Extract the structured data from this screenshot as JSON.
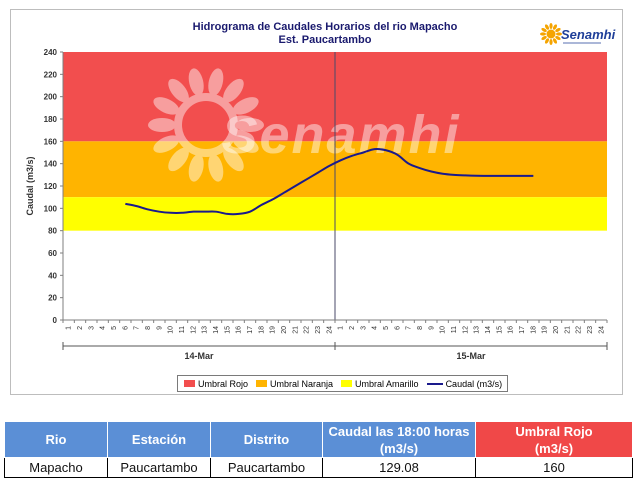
{
  "chart_data": {
    "type": "line",
    "title": "Hidrograma de Caudales Horarios del rio Mapacho",
    "subtitle": "Est. Paucartambo",
    "ylabel": "Caudal  (m3/s)",
    "xlabel": "",
    "ylim": [
      0,
      240
    ],
    "yticks": [
      0,
      20,
      40,
      60,
      80,
      100,
      120,
      140,
      160,
      180,
      200,
      220,
      240
    ],
    "x_tick_labels": [
      "1",
      "2",
      "3",
      "4",
      "5",
      "6",
      "7",
      "8",
      "9",
      "10",
      "11",
      "12",
      "13",
      "14",
      "15",
      "16",
      "17",
      "18",
      "19",
      "20",
      "21",
      "22",
      "23",
      "24",
      "1",
      "2",
      "3",
      "4",
      "5",
      "6",
      "7",
      "8",
      "9",
      "10",
      "11",
      "12",
      "13",
      "14",
      "15",
      "16",
      "17",
      "18",
      "19",
      "20",
      "21",
      "22",
      "23",
      "24"
    ],
    "day_groups": [
      "14-Mar",
      "15-Mar"
    ],
    "threshold_bands": [
      {
        "name": "Umbral Rojo",
        "from": 160,
        "to": 240,
        "color": "#f24e4e"
      },
      {
        "name": "Umbral Naranja",
        "from": 110,
        "to": 160,
        "color": "#ffb400"
      },
      {
        "name": "Umbral Amarillo",
        "from": 80,
        "to": 110,
        "color": "#ffff00"
      }
    ],
    "series": [
      {
        "name": "Caudal (m3/s)",
        "color": "#1a1a8c",
        "x": [
          6,
          7,
          8,
          9,
          10,
          11,
          12,
          13,
          14,
          15,
          16,
          17,
          18,
          19,
          20,
          21,
          22,
          23,
          24,
          25,
          26,
          27,
          28,
          29,
          30,
          31,
          32,
          33,
          34,
          35,
          36,
          37,
          38,
          39,
          40,
          41,
          42
        ],
        "values": [
          104,
          102,
          99,
          97,
          96,
          96,
          97,
          97,
          97,
          95,
          95,
          97,
          103,
          108,
          114,
          120,
          126,
          132,
          138,
          143,
          147,
          150,
          153,
          152,
          148,
          140,
          136,
          133,
          131,
          130,
          129.5,
          129.2,
          129.1,
          129.08,
          129.08,
          129.08,
          129.08
        ]
      }
    ],
    "legend": {
      "position": "bottom",
      "entries": [
        "Umbral Rojo",
        "Umbral Naranja",
        "Umbral Amarillo",
        "Caudal (m3/s)"
      ]
    },
    "watermark": "Senamhi",
    "grid": false
  },
  "logo": {
    "text": "Senamhi"
  },
  "table": {
    "headers": {
      "rio": "Rio",
      "estacion": "Estación",
      "distrito": "Distrito",
      "caudal_line1": "Caudal las 18:00 horas",
      "caudal_unit": "(m3/s)",
      "umbral_line1": "Umbral Rojo",
      "umbral_unit": "(m3/s)"
    },
    "row": {
      "rio": "Mapacho",
      "estacion": "Paucartambo",
      "distrito": "Paucartambo",
      "caudal": "129.08",
      "umbral": "160"
    }
  }
}
